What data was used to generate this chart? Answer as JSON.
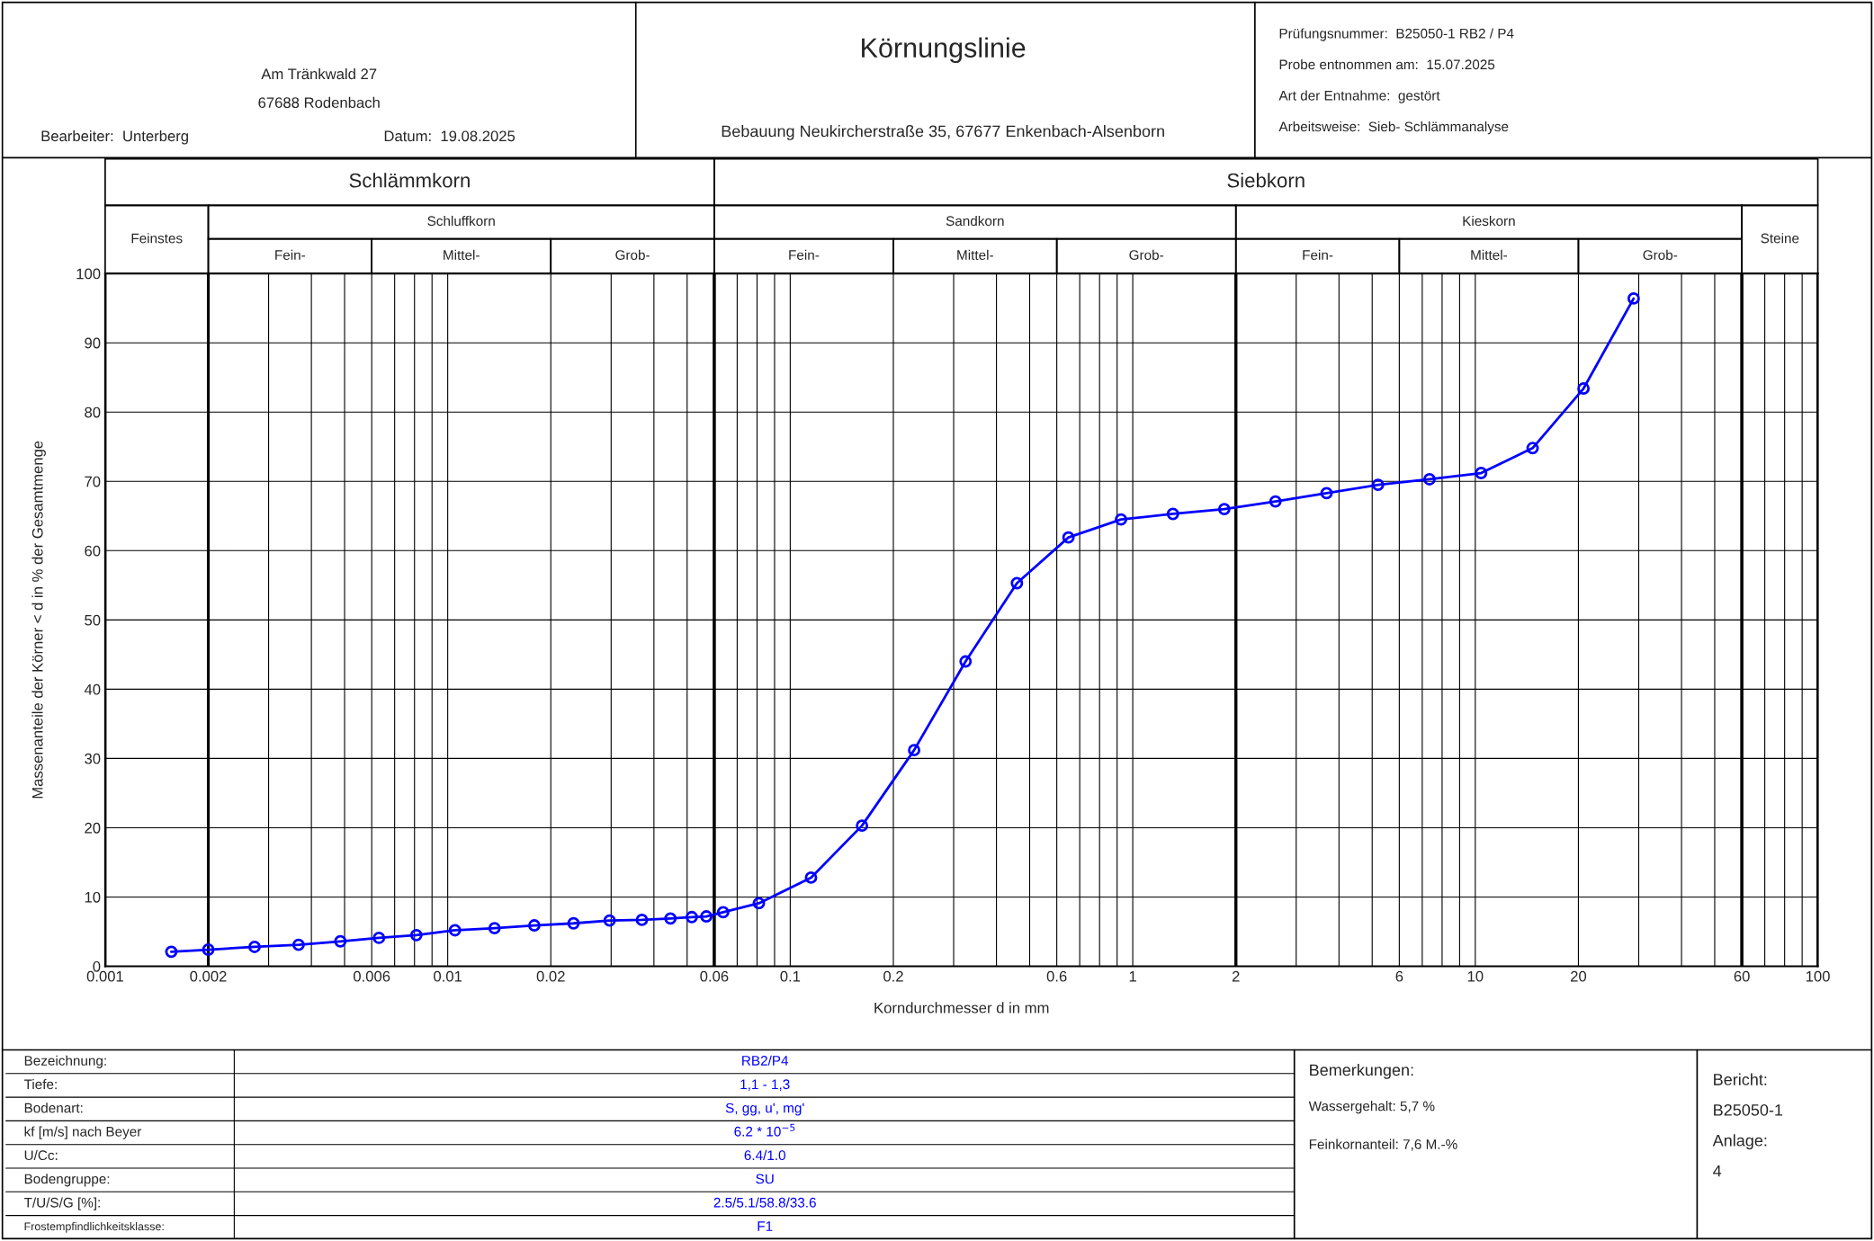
{
  "chart_data": {
    "type": "line",
    "title": "Körnungslinie",
    "subtitle": "Bebauung Neukircherstraße 35, 67677 Enkenbach-Alsenborn",
    "xlabel": "Korndurchmesser d in mm",
    "ylabel": "Massenanteile der Körner < d in % der Gesamtmenge",
    "log": "x",
    "grid": true,
    "marker": "circle",
    "line_style": "solid",
    "xlim": [
      0.001,
      100
    ],
    "ylim": [
      0,
      100
    ],
    "xticks": [
      0.001,
      0.002,
      {
        "value": 0.003,
        "label": null
      },
      {
        "value": 0.004,
        "label": null
      },
      {
        "value": 0.005,
        "label": null
      },
      0.006,
      {
        "value": 0.007,
        "label": null
      },
      {
        "value": 0.008,
        "label": null
      },
      {
        "value": 0.009,
        "label": null
      },
      0.01,
      0.02,
      {
        "value": 0.03,
        "label": null
      },
      {
        "value": 0.04,
        "label": null
      },
      {
        "value": 0.05,
        "label": null
      },
      0.06,
      {
        "value": 0.07,
        "label": null
      },
      {
        "value": 0.08,
        "label": null
      },
      {
        "value": 0.09,
        "label": null
      },
      0.1,
      0.2,
      {
        "value": 0.3,
        "label": null
      },
      {
        "value": 0.4,
        "label": null
      },
      {
        "value": 0.5,
        "label": null
      },
      0.6,
      {
        "value": 0.7,
        "label": null
      },
      {
        "value": 0.8,
        "label": null
      },
      {
        "value": 0.9,
        "label": null
      },
      1,
      2,
      {
        "value": 3,
        "label": null
      },
      {
        "value": 4,
        "label": null
      },
      {
        "value": 5,
        "label": null
      },
      6,
      {
        "value": 7,
        "label": null
      },
      {
        "value": 8,
        "label": null
      },
      {
        "value": 9,
        "label": null
      },
      10,
      20,
      {
        "value": 30,
        "label": null
      },
      {
        "value": 40,
        "label": null
      },
      {
        "value": 50,
        "label": null
      },
      60,
      {
        "value": 70,
        "label": null
      },
      {
        "value": 80,
        "label": null
      },
      {
        "value": 90,
        "label": null
      },
      100
    ],
    "yticks": [
      0,
      10,
      20,
      30,
      40,
      50,
      60,
      70,
      80,
      90,
      100
    ],
    "series": [
      {
        "color": "#0000ff",
        "x": [
          0.00156,
          0.002,
          0.00273,
          0.00367,
          0.00486,
          0.0063,
          0.0081,
          0.0105,
          0.0137,
          0.0179,
          0.0233,
          0.0297,
          0.0369,
          0.0447,
          0.0516,
          0.0569,
          0.0637,
          0.081,
          0.115,
          0.162,
          0.23,
          0.325,
          0.459,
          0.649,
          0.924,
          1.31,
          1.85,
          2.61,
          3.68,
          5.2,
          7.35,
          10.4,
          14.7,
          20.7,
          29.0
        ],
        "values": [
          2.1,
          2.4,
          2.8,
          3.1,
          3.6,
          4.1,
          4.5,
          5.2,
          5.5,
          5.9,
          6.2,
          6.6,
          6.7,
          6.9,
          7.1,
          7.2,
          7.8,
          9.1,
          12.8,
          20.3,
          31.2,
          44.0,
          55.3,
          61.9,
          64.5,
          65.3,
          66.0,
          67.1,
          68.3,
          69.5,
          70.3,
          71.2,
          74.8,
          83.4,
          96.4
        ]
      }
    ],
    "annotations": [
      "Am Tränkwald 27",
      "67688 Rodenbach",
      "Bearbeiter:  Unterberg",
      "Datum:  19.08.2025",
      "Prüfungsnummer:  B25050-1 RB2 / P4",
      "Probe entnommen am:  15.07.2025",
      "Art der Entnahme:  gestört",
      "Arbeitsweise:  Sieb- Schlämmanalyse",
      "Bezeichnung:",
      "RB2/P4",
      "Tiefe:",
      "1,1 - 1,3",
      "Bodenart:",
      "S, gg, u', mg'",
      "kf [m/s] nach Beyer",
      "6.2 * 10$^{−5}$",
      "U/Cc:",
      "6.4/1.0",
      "Bodengruppe:",
      "SU",
      "T/U/S/G [%]:",
      "2.5/5.1/58.8/33.6",
      "Frostempfindlichkeitsklasse:",
      "F1",
      "Bemerkungen:",
      "Wassergehalt: 5,7 %",
      "Feinkornanteil: 7,6 M.-%",
      "Bericht:",
      "B25050-1",
      "Anlage:",
      "4",
      "Schlämmkorn",
      "Siebkorn",
      "Feinstes",
      "Schluffkorn",
      "Sandkorn",
      "Kieskorn",
      "Steine",
      "Fein-",
      "Mittel-",
      "Grob-",
      "Fein-",
      "Mittel-",
      "Grob-",
      "Fein-",
      "Mittel-",
      "Grob-"
    ]
  }
}
